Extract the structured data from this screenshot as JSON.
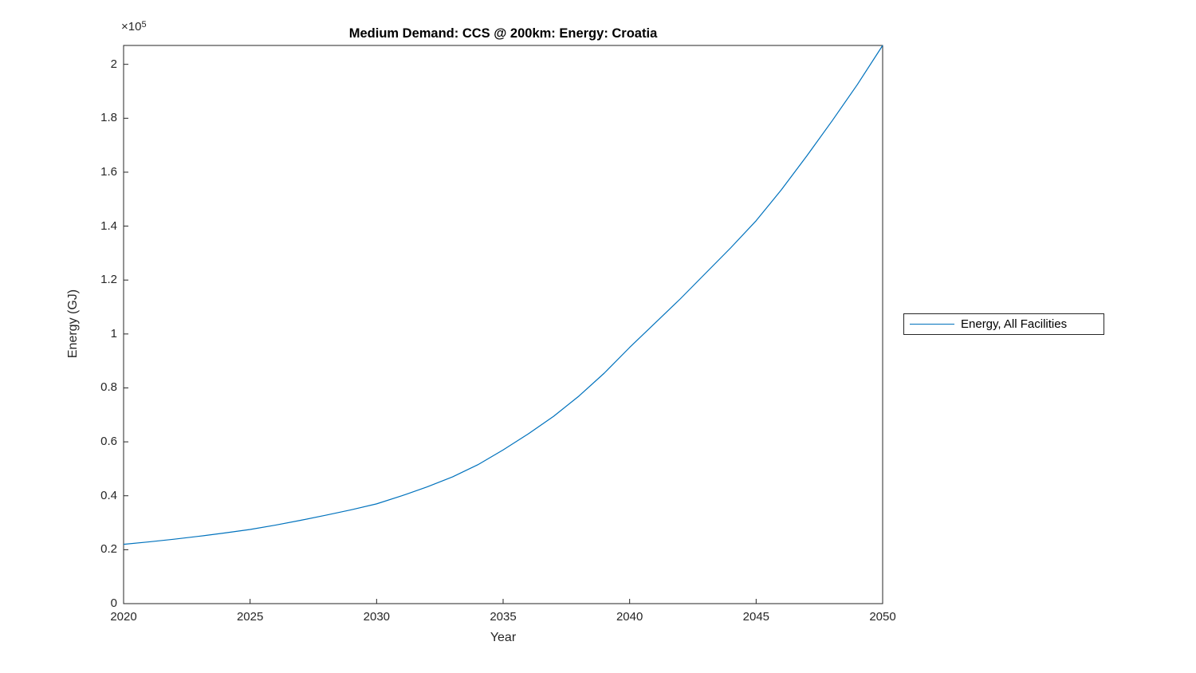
{
  "colors": {
    "line": "#0072BD",
    "axis": "#262626",
    "tick_text": "#262626",
    "title_text": "#000000"
  },
  "y_axis_multiplier": {
    "base": "×10",
    "exponent": "5"
  },
  "legend": {
    "items": [
      {
        "label": "Energy, All Facilities",
        "color": "#0072BD"
      }
    ]
  },
  "chart_data": {
    "type": "line",
    "title": "Medium Demand: CCS @ 200km: Energy: Croatia",
    "xlabel": "Year",
    "ylabel": "Energy (GJ)",
    "xlim": [
      2020,
      2050
    ],
    "ylim": [
      0,
      207000
    ],
    "grid": false,
    "legend_position": "outside-right",
    "x_tick_values": [
      2020,
      2025,
      2030,
      2035,
      2040,
      2045,
      2050
    ],
    "x_tick_labels": [
      "2020",
      "2025",
      "2030",
      "2035",
      "2040",
      "2045",
      "2050"
    ],
    "y_tick_values": [
      0,
      20000,
      40000,
      60000,
      80000,
      100000,
      120000,
      140000,
      160000,
      180000,
      200000
    ],
    "y_tick_labels": [
      "0",
      "0.2",
      "0.4",
      "0.6",
      "0.8",
      "1",
      "1.2",
      "1.4",
      "1.6",
      "1.8",
      "2"
    ],
    "series": [
      {
        "name": "Energy, All Facilities",
        "color": "#0072BD",
        "x": [
          2020,
          2021,
          2022,
          2023,
          2024,
          2025,
          2026,
          2027,
          2028,
          2029,
          2030,
          2031,
          2032,
          2033,
          2034,
          2035,
          2036,
          2037,
          2038,
          2039,
          2040,
          2041,
          2042,
          2043,
          2044,
          2045,
          2046,
          2047,
          2048,
          2049,
          2050
        ],
        "y": [
          22000,
          22900,
          23900,
          25000,
          26200,
          27500,
          29100,
          30900,
          32800,
          34800,
          37000,
          40000,
          43300,
          47000,
          51500,
          57000,
          63000,
          69500,
          77000,
          85500,
          95000,
          104000,
          113000,
          122500,
          132000,
          142000,
          153500,
          166000,
          179000,
          192500,
          207000
        ]
      }
    ]
  }
}
